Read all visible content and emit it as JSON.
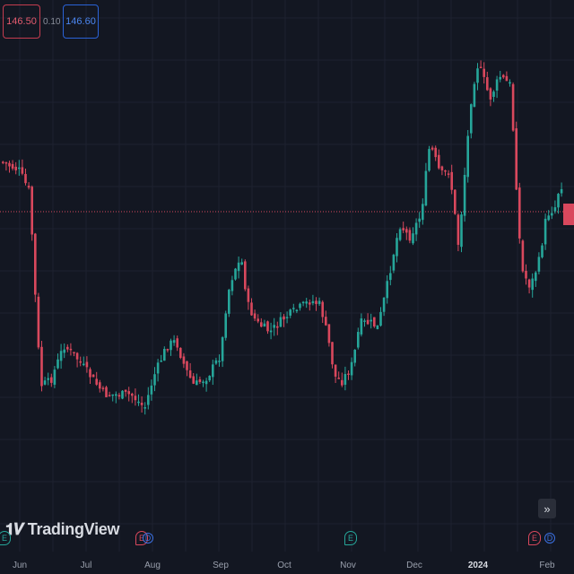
{
  "trade_bar": {
    "sell_price": "146.50",
    "spread": "0.10",
    "buy_price": "146.60"
  },
  "logo": {
    "name": "TradingView"
  },
  "x_axis": {
    "labels": [
      "Jun",
      "Jul",
      "Aug",
      "Sep",
      "Oct",
      "Nov",
      "Dec",
      "2024",
      "Feb"
    ]
  },
  "events": [
    {
      "label": "E",
      "type": "earnings",
      "color": "#26a69a"
    },
    {
      "label": "E",
      "type": "earnings",
      "color": "#d9485d"
    },
    {
      "label": "D",
      "type": "dividend",
      "color": "#3a6fe0"
    },
    {
      "label": "E",
      "type": "earnings",
      "color": "#26a69a"
    },
    {
      "label": "E",
      "type": "earnings",
      "color": "#d9485d"
    },
    {
      "label": "D",
      "type": "dividend",
      "color": "#3a6fe0"
    }
  ],
  "controls": {
    "scroll_to_latest": "»"
  },
  "colors": {
    "background": "#131722",
    "up": "#26a69a",
    "down": "#d9485d",
    "price_line": "#d9485d"
  }
}
